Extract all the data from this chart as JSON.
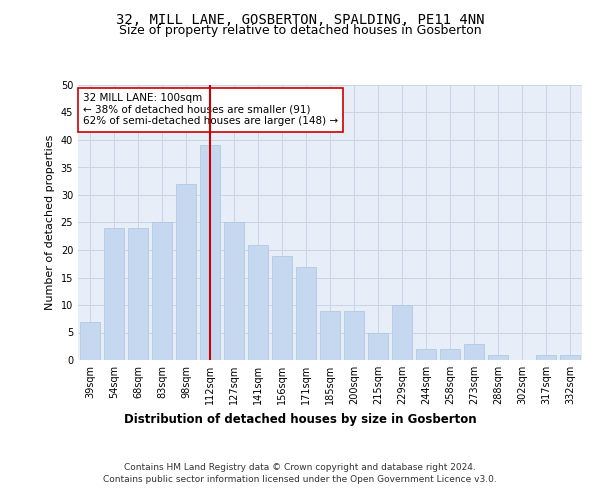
{
  "title": "32, MILL LANE, GOSBERTON, SPALDING, PE11 4NN",
  "subtitle": "Size of property relative to detached houses in Gosberton",
  "xlabel": "Distribution of detached houses by size in Gosberton",
  "ylabel": "Number of detached properties",
  "categories": [
    "39sqm",
    "54sqm",
    "68sqm",
    "83sqm",
    "98sqm",
    "112sqm",
    "127sqm",
    "141sqm",
    "156sqm",
    "171sqm",
    "185sqm",
    "200sqm",
    "215sqm",
    "229sqm",
    "244sqm",
    "258sqm",
    "273sqm",
    "288sqm",
    "302sqm",
    "317sqm",
    "332sqm"
  ],
  "values": [
    7,
    24,
    24,
    25,
    32,
    39,
    25,
    21,
    19,
    17,
    9,
    9,
    5,
    10,
    2,
    2,
    3,
    1,
    0,
    1,
    1
  ],
  "bar_color": "#c5d8f0",
  "bar_edge_color": "#a8c4e0",
  "vline_x_idx": 5,
  "vline_color": "#cc0000",
  "annotation_line1": "32 MILL LANE: 100sqm",
  "annotation_line2": "← 38% of detached houses are smaller (91)",
  "annotation_line3": "62% of semi-detached houses are larger (148) →",
  "annotation_box_color": "white",
  "annotation_box_edge": "#cc0000",
  "ylim": [
    0,
    50
  ],
  "yticks": [
    0,
    5,
    10,
    15,
    20,
    25,
    30,
    35,
    40,
    45,
    50
  ],
  "grid_color": "#c8d4e8",
  "background_color": "#e8eef8",
  "footer_line1": "Contains HM Land Registry data © Crown copyright and database right 2024.",
  "footer_line2": "Contains public sector information licensed under the Open Government Licence v3.0.",
  "title_fontsize": 10,
  "subtitle_fontsize": 9,
  "xlabel_fontsize": 8.5,
  "ylabel_fontsize": 8,
  "tick_fontsize": 7,
  "annotation_fontsize": 7.5,
  "footer_fontsize": 6.5
}
